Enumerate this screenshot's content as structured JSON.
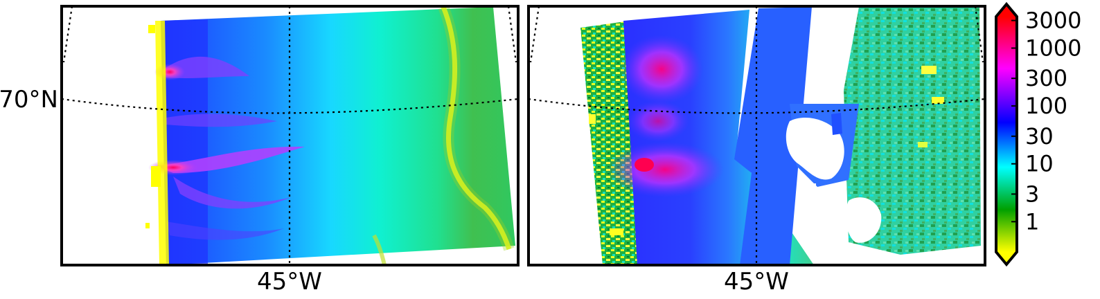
{
  "panels": [
    {
      "name": "left-map",
      "lat_labels": [
        "70°N"
      ],
      "lon_labels": [
        "45°W"
      ]
    },
    {
      "name": "right-map",
      "lat_labels": [],
      "lon_labels": [
        "45°W"
      ]
    }
  ],
  "colorbar": {
    "scale": "log",
    "extend": "both",
    "ticks": [
      "3000",
      "1000",
      "300",
      "100",
      "30",
      "10",
      "3",
      "1"
    ],
    "tick_values": [
      3000,
      1000,
      300,
      100,
      30,
      10,
      3,
      1
    ],
    "range": [
      0.3,
      3500
    ],
    "colors_low_to_high": [
      "#ffff00",
      "#008000",
      "#00ffff",
      "#0000ff",
      "#ff00ff",
      "#ff0000"
    ]
  },
  "grid": {
    "style": "dotted",
    "color": "#000000"
  }
}
